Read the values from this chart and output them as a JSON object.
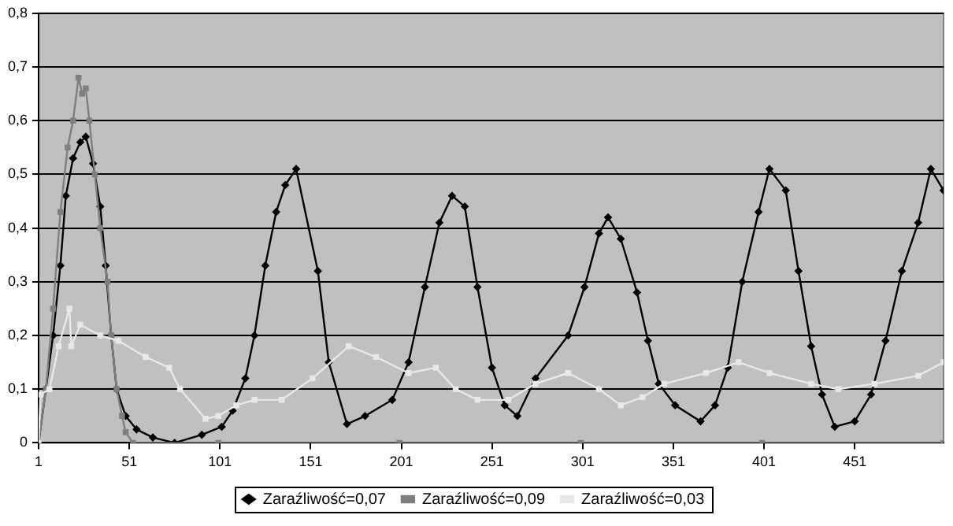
{
  "chart_data": {
    "type": "line",
    "xlim": [
      1,
      500
    ],
    "xticks": [
      1,
      51,
      101,
      151,
      201,
      251,
      301,
      351,
      401,
      451
    ],
    "ylim": [
      0,
      0.8
    ],
    "yticks": [
      0,
      {
        "value": 0.1,
        "label": "0,1"
      },
      {
        "value": 0.2,
        "label": "0,2"
      },
      {
        "value": 0.3,
        "label": "0,3"
      },
      {
        "value": 0.4,
        "label": "0,4"
      },
      {
        "value": 0.5,
        "label": "0,5"
      },
      {
        "value": 0.6,
        "label": "0,6"
      },
      {
        "value": 0.7,
        "label": "0,7"
      },
      {
        "value": 0.8,
        "label": "0,8"
      }
    ],
    "grid": "y",
    "legend": "bottom",
    "line_style": "solid",
    "series": [
      {
        "name": "Zaraźliwość=0,07",
        "color": "#000000",
        "marker": "diamond",
        "x": [
          1,
          5,
          9,
          13,
          16,
          20,
          24,
          27,
          31,
          35,
          38,
          41,
          44,
          49,
          55,
          64,
          76,
          91,
          102,
          108,
          115,
          120,
          126,
          132,
          137,
          143,
          155,
          161,
          171,
          181,
          196,
          205,
          214,
          222,
          229,
          236,
          243,
          251,
          258,
          265,
          275,
          293,
          302,
          310,
          315,
          322,
          331,
          337,
          343,
          352,
          366,
          374,
          381,
          389,
          398,
          404,
          413,
          420,
          427,
          433,
          440,
          451,
          460,
          468,
          477,
          486,
          493,
          500
        ],
        "values": [
          0,
          0.1,
          0.2,
          0.33,
          0.46,
          0.53,
          0.56,
          0.57,
          0.52,
          0.44,
          0.33,
          0.2,
          0.1,
          0.05,
          0.025,
          0.01,
          0,
          0.015,
          0.03,
          0.06,
          0.12,
          0.2,
          0.33,
          0.43,
          0.48,
          0.51,
          0.32,
          0.15,
          0.035,
          0.05,
          0.08,
          0.15,
          0.29,
          0.41,
          0.46,
          0.44,
          0.29,
          0.14,
          0.07,
          0.05,
          0.12,
          0.2,
          0.29,
          0.39,
          0.42,
          0.38,
          0.28,
          0.19,
          0.11,
          0.07,
          0.04,
          0.07,
          0.14,
          0.3,
          0.43,
          0.51,
          0.47,
          0.32,
          0.18,
          0.09,
          0.03,
          0.04,
          0.09,
          0.19,
          0.32,
          0.41,
          0.51,
          0.47
        ]
      },
      {
        "name": "Zaraźliwość=0,09",
        "color": "#7f7f7f",
        "marker": "square",
        "x": [
          1,
          5,
          9,
          13,
          17,
          20,
          23,
          25,
          27,
          29,
          32,
          35,
          39,
          41,
          44,
          47,
          49,
          53,
          100,
          200,
          300,
          400,
          500
        ],
        "values": [
          0,
          0.1,
          0.25,
          0.43,
          0.55,
          0.6,
          0.68,
          0.65,
          0.66,
          0.6,
          0.5,
          0.4,
          0.3,
          0.2,
          0.1,
          0.05,
          0.02,
          0,
          0,
          0,
          0,
          0,
          0
        ]
      },
      {
        "name": "Zaraźliwość=0,03",
        "color": "#e8e8e8",
        "marker": "square",
        "x": [
          1,
          2,
          7,
          12,
          18,
          19,
          24,
          35,
          45,
          60,
          73,
          79,
          93,
          100,
          110,
          120,
          135,
          152,
          172,
          187,
          205,
          220,
          231,
          243,
          260,
          275,
          293,
          310,
          322,
          334,
          346,
          369,
          387,
          404,
          427,
          442,
          462,
          486,
          500
        ],
        "values": [
          0,
          0.09,
          0.1,
          0.18,
          0.25,
          0.18,
          0.22,
          0.2,
          0.19,
          0.16,
          0.14,
          0.1,
          0.045,
          0.05,
          0.07,
          0.08,
          0.08,
          0.12,
          0.18,
          0.16,
          0.13,
          0.14,
          0.1,
          0.08,
          0.08,
          0.11,
          0.13,
          0.1,
          0.07,
          0.085,
          0.11,
          0.13,
          0.15,
          0.13,
          0.11,
          0.1,
          0.11,
          0.125,
          0.15
        ]
      }
    ]
  }
}
